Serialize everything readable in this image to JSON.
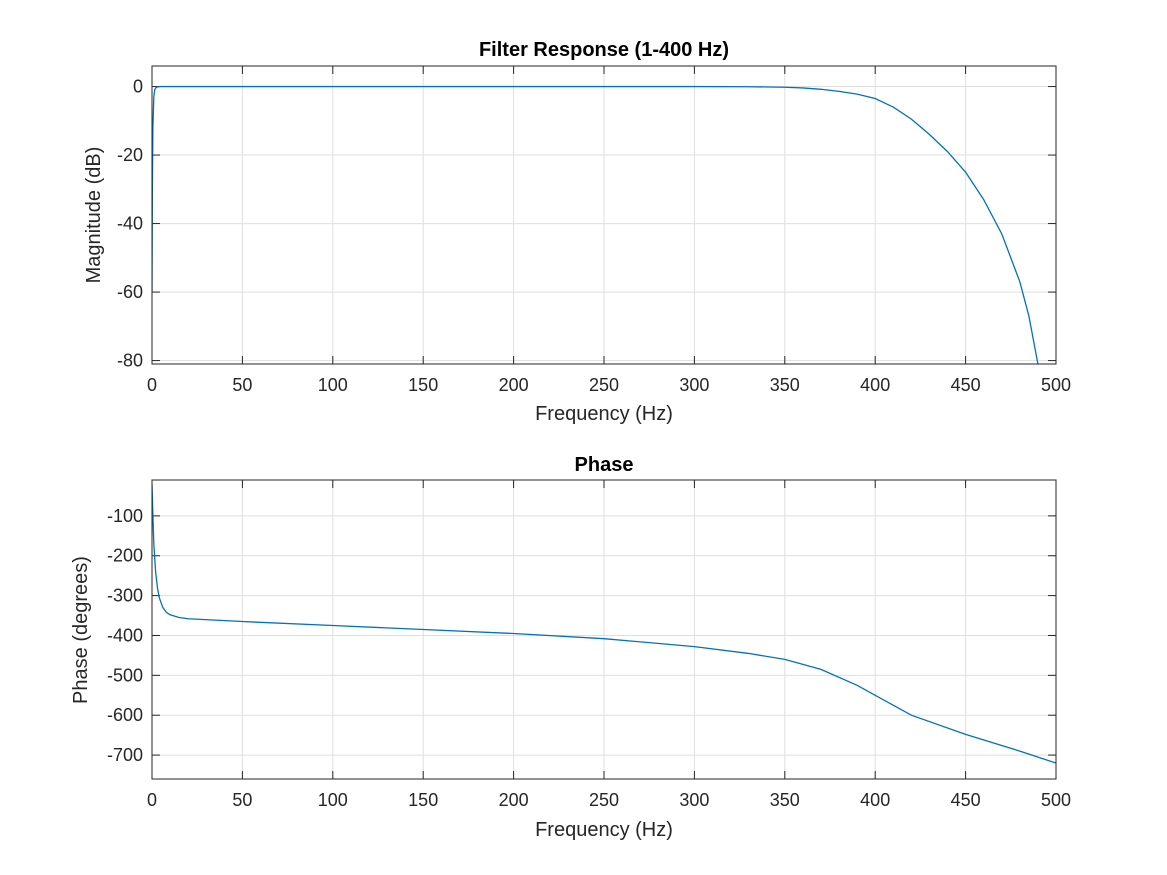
{
  "chart_data": [
    {
      "type": "line",
      "title": "Filter Response (1-400 Hz)",
      "xlabel": "Frequency (Hz)",
      "ylabel": "Magnitude (dB)",
      "xlim": [
        0,
        500
      ],
      "ylim": [
        -81,
        6
      ],
      "xticks": [
        0,
        50,
        100,
        150,
        200,
        250,
        300,
        350,
        400,
        450,
        500
      ],
      "yticks": [
        0,
        -20,
        -40,
        -60,
        -80
      ],
      "grid": true,
      "series": [
        {
          "color": "#0072BD",
          "x": [
            0,
            0.2,
            0.5,
            1,
            1.5,
            2,
            3,
            5,
            10,
            50,
            100,
            200,
            300,
            330,
            350,
            360,
            370,
            380,
            390,
            400,
            410,
            420,
            430,
            440,
            450,
            460,
            470,
            480,
            485,
            490
          ],
          "y": [
            -60,
            -30,
            -12,
            -3,
            -1,
            -0.4,
            -0.1,
            0,
            0,
            0,
            0,
            0,
            0,
            -0.05,
            -0.2,
            -0.4,
            -0.8,
            -1.4,
            -2.2,
            -3.5,
            -6,
            -9.5,
            -14,
            -19,
            -25,
            -33,
            -43,
            -57,
            -67,
            -81
          ]
        }
      ]
    },
    {
      "type": "line",
      "title": "Phase",
      "xlabel": "Frequency (Hz)",
      "ylabel": "Phase (degrees)",
      "xlim": [
        0,
        500
      ],
      "ylim": [
        -760,
        -10
      ],
      "xticks": [
        0,
        50,
        100,
        150,
        200,
        250,
        300,
        350,
        400,
        450,
        500
      ],
      "yticks": [
        -100,
        -200,
        -300,
        -400,
        -500,
        -600,
        -700
      ],
      "grid": true,
      "series": [
        {
          "color": "#0072BD",
          "x": [
            0,
            0.5,
            1,
            2,
            3,
            4,
            6,
            8,
            10,
            15,
            20,
            50,
            100,
            150,
            200,
            250,
            300,
            330,
            350,
            370,
            390,
            400,
            420,
            450,
            480,
            500
          ],
          "y": [
            -20,
            -100,
            -170,
            -240,
            -280,
            -305,
            -330,
            -342,
            -348,
            -355,
            -358,
            -365,
            -375,
            -385,
            -395,
            -408,
            -428,
            -445,
            -460,
            -485,
            -525,
            -550,
            -600,
            -648,
            -690,
            -720
          ]
        }
      ]
    }
  ]
}
